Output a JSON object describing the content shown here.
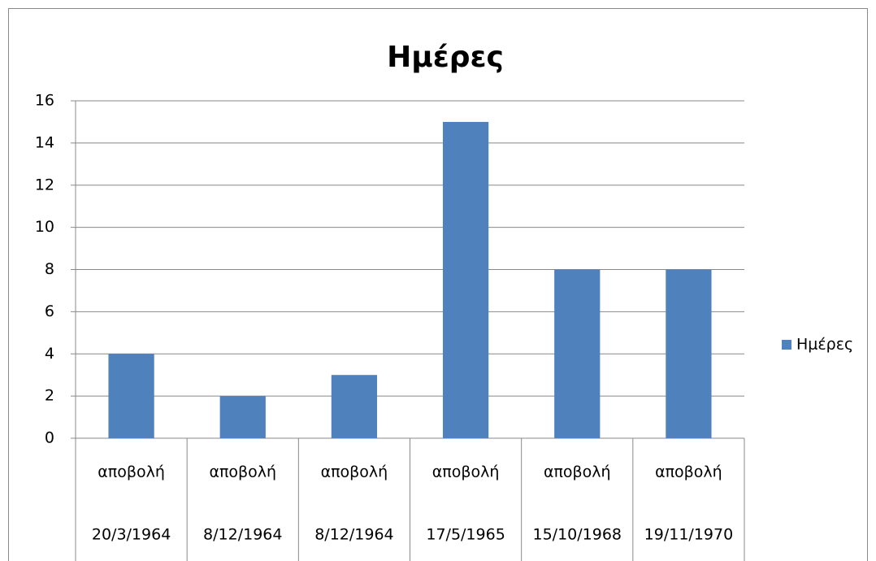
{
  "chart_data": {
    "type": "bar",
    "title": "Ημέρες",
    "categories": [
      [
        "αποβολή",
        "20/3/1964"
      ],
      [
        "αποβολή",
        "8/12/1964"
      ],
      [
        "αποβολή",
        "8/12/1964"
      ],
      [
        "αποβολή",
        "17/5/1965"
      ],
      [
        "αποβολή",
        "15/10/1968"
      ],
      [
        "αποβολή",
        "19/11/1970"
      ]
    ],
    "series": [
      {
        "name": "Ημέρες",
        "color": "#4f81bd",
        "values": [
          4,
          2,
          3,
          15,
          8,
          8
        ]
      }
    ],
    "ylim": [
      0,
      16
    ],
    "yticks": [
      0,
      2,
      4,
      6,
      8,
      10,
      12,
      14,
      16
    ],
    "grid": true,
    "legend": "right"
  }
}
